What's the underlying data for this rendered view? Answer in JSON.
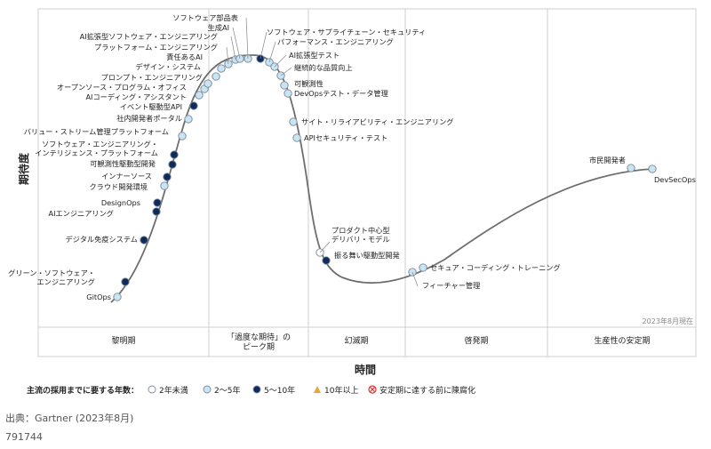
{
  "chart_data": {
    "type": "scatter",
    "title": "",
    "ylabel": "期待度",
    "xlabel": "時間",
    "date_note": "2023年8月現在",
    "phases": [
      "黎明期",
      "「過度な期待」の\nピーク期",
      "幻滅期",
      "啓発期",
      "生産性の安定期"
    ],
    "legend": {
      "title": "主流の採用までに要する年数：",
      "items": [
        {
          "key": "lt2",
          "label": "2年未満"
        },
        {
          "key": "2to5",
          "label": "2～5年"
        },
        {
          "key": "5to10",
          "label": "5～10年"
        },
        {
          "key": "gt10",
          "label": "10年以上"
        },
        {
          "key": "obsolete",
          "label": "安定期に達する前に陳腐化"
        }
      ]
    },
    "points": [
      {
        "label": "GitOps",
        "cat": "2to5"
      },
      {
        "label": "グリーン・ソフトウェア・\nエンジニアリング",
        "cat": "5to10"
      },
      {
        "label": "デジタル免疫システム",
        "cat": "5to10"
      },
      {
        "label": "AIエンジニアリング",
        "cat": "5to10"
      },
      {
        "label": "DesignOps",
        "cat": "5to10"
      },
      {
        "label": "クラウド開発環境",
        "cat": "2to5"
      },
      {
        "label": "インナーソース",
        "cat": "5to10"
      },
      {
        "label": "可観測性駆動型開発",
        "cat": "5to10"
      },
      {
        "label": "ソフトウェア・エンジニアリング・\nインテリジェンス・プラットフォーム",
        "cat": "5to10"
      },
      {
        "label": "バリュー・ストリーム管理プラットフォーム",
        "cat": "2to5"
      },
      {
        "label": "社内開発者ポータル",
        "cat": "2to5"
      },
      {
        "label": "イベント駆動型API",
        "cat": "5to10"
      },
      {
        "label": "AIコーディング・アシスタント",
        "cat": "2to5"
      },
      {
        "label": "オープンソース・プログラム・オフィス",
        "cat": "2to5"
      },
      {
        "label": "プロンプト・エンジニアリング",
        "cat": "2to5"
      },
      {
        "label": "デザイン・システム",
        "cat": "2to5"
      },
      {
        "label": "責任あるAI",
        "cat": "2to5"
      },
      {
        "label": "プラットフォーム・エンジニアリング",
        "cat": "2to5"
      },
      {
        "label": "AI拡張型ソフトウェア・エンジニアリング",
        "cat": "2to5"
      },
      {
        "label": "生成AI",
        "cat": "2to5"
      },
      {
        "label": "ソフトウェア部品表",
        "cat": "2to5"
      },
      {
        "label": "ソフトウェア・サプライチェーン・セキュリティ",
        "cat": "5to10"
      },
      {
        "label": "パフォーマンス・エンジニアリング",
        "cat": "2to5"
      },
      {
        "label": "AI拡張型テスト",
        "cat": "2to5"
      },
      {
        "label": "継続的な品質向上",
        "cat": "2to5"
      },
      {
        "label": "可観測性",
        "cat": "2to5"
      },
      {
        "label": "DevOpsテスト・データ管理",
        "cat": "2to5"
      },
      {
        "label": "サイト・リライアビリティ・エンジニアリング",
        "cat": "2to5"
      },
      {
        "label": "APIセキュリティ・テスト",
        "cat": "2to5"
      },
      {
        "label": "プロダクト中心型\nデリバリ・モデル",
        "cat": "lt2"
      },
      {
        "label": "振る舞い駆動型開発",
        "cat": "5to10"
      },
      {
        "label": "セキュア・コーディング・トレーニング",
        "cat": "2to5"
      },
      {
        "label": "フィーチャー管理",
        "cat": "2to5"
      },
      {
        "label": "市民開発者",
        "cat": "2to5"
      },
      {
        "label": "DevSecOps",
        "cat": "2to5"
      }
    ]
  },
  "source": "出典：Gartner (2023年8月)",
  "doc_id": "791744",
  "colors": {
    "lt2": "#ffffff",
    "2to5": "#c9e4f4",
    "5to10": "#102a5c",
    "gt10": "#e8a33b",
    "obsolete": "#e03030",
    "curve": "#6e6e6e",
    "grid": "#cfcfcf",
    "phase_band": "#ffffff"
  }
}
